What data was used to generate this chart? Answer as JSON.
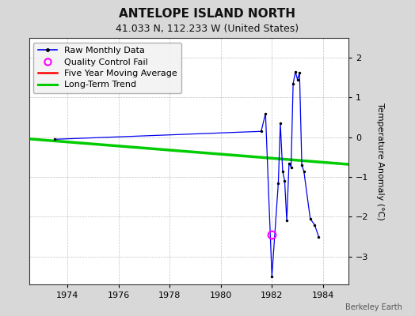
{
  "title": "ANTELOPE ISLAND NORTH",
  "subtitle": "41.033 N, 112.233 W (United States)",
  "ylabel": "Temperature Anomaly (°C)",
  "watermark": "Berkeley Earth",
  "xlim": [
    1972.5,
    1985.0
  ],
  "ylim": [
    -3.7,
    2.5
  ],
  "yticks": [
    -3,
    -2,
    -1,
    0,
    1,
    2
  ],
  "xticks": [
    1974,
    1976,
    1978,
    1980,
    1982,
    1984
  ],
  "bg_color": "#d8d8d8",
  "plot_bg_color": "#ffffff",
  "raw_data_x": [
    1973.5,
    1981.58,
    1981.75,
    1982.0,
    1982.25,
    1982.33,
    1982.42,
    1982.5,
    1982.58,
    1982.67,
    1982.75,
    1982.83,
    1982.92,
    1983.0,
    1983.08,
    1983.17,
    1983.25,
    1983.5,
    1983.67,
    1983.83
  ],
  "raw_data_y": [
    -0.05,
    0.15,
    0.6,
    -3.5,
    -1.15,
    0.35,
    -0.85,
    -1.1,
    -2.1,
    -0.65,
    -0.75,
    1.35,
    1.65,
    1.45,
    1.62,
    -0.7,
    -0.85,
    -2.05,
    -2.2,
    -2.5
  ],
  "qc_fail_x": [
    1982.0
  ],
  "qc_fail_y": [
    -2.45
  ],
  "trend_x": [
    1972.5,
    1985.0
  ],
  "trend_y": [
    -0.04,
    -0.68
  ],
  "raw_color": "#0000ee",
  "raw_marker_color": "#000000",
  "qc_color": "#ff00ff",
  "trend_color": "#00cc00",
  "moving_avg_color": "#ff0000",
  "legend_bg": "#f2f2f2",
  "title_fontsize": 11,
  "subtitle_fontsize": 9,
  "label_fontsize": 8,
  "tick_fontsize": 8,
  "legend_fontsize": 8
}
